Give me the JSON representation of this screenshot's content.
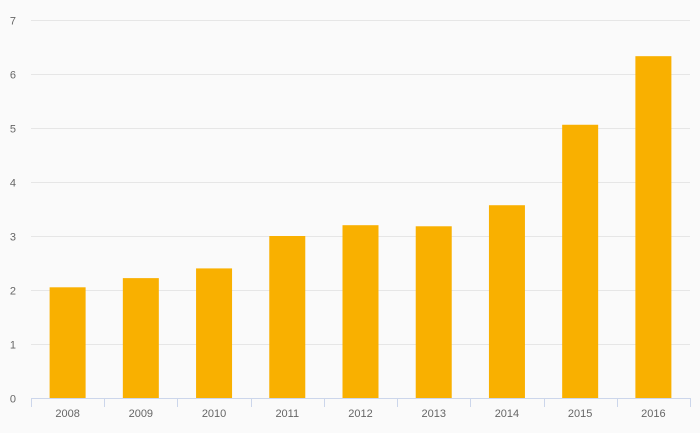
{
  "chart_data": {
    "type": "bar",
    "title": "",
    "xlabel": "",
    "ylabel": "",
    "categories": [
      "2008",
      "2009",
      "2010",
      "2011",
      "2012",
      "2013",
      "2014",
      "2015",
      "2016"
    ],
    "values": [
      2.05,
      2.22,
      2.4,
      3.0,
      3.2,
      3.18,
      3.57,
      5.06,
      6.33
    ],
    "ylim": [
      0,
      7
    ],
    "yticks": [
      0,
      1,
      2,
      3,
      4,
      5,
      6,
      7
    ],
    "grid": true,
    "legend": "none",
    "bar_color": "#f9b000"
  }
}
